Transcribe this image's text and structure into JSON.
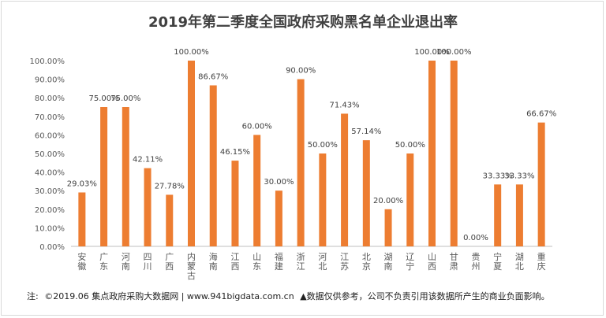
{
  "chart_data": {
    "type": "bar",
    "title": "2019年第二季度全国政府采购黑名单企业退出率",
    "categories": [
      "安徽",
      "广东",
      "河南",
      "四川",
      "广西",
      "内蒙古",
      "海南",
      "江西",
      "山东",
      "福建",
      "浙江",
      "河北",
      "江苏",
      "北京",
      "湖南",
      "辽宁",
      "山西",
      "甘肃",
      "贵州",
      "宁夏",
      "湖北",
      "重庆"
    ],
    "values": [
      29.03,
      75.0,
      75.0,
      42.11,
      27.78,
      100.0,
      86.67,
      46.15,
      60.0,
      30.0,
      90.0,
      50.0,
      71.43,
      57.14,
      20.0,
      50.0,
      100.0,
      100.0,
      0.0,
      33.33,
      33.33,
      66.67
    ],
    "data_labels": [
      "29.03%",
      "75.00%",
      "75.00%",
      "42.11%",
      "27.78%",
      "100.00%",
      "86.67%",
      "46.15%",
      "60.00%",
      "30.00%",
      "90.00%",
      "50.00%",
      "71.43%",
      "57.14%",
      "20.00%",
      "50.00%",
      "100.00%",
      "100.00%",
      "0.00%",
      "33.33%",
      "33.33%",
      "66.67%"
    ],
    "ylim": [
      0,
      100
    ],
    "y_ticks": [
      "0.00%",
      "10.00%",
      "20.00%",
      "30.00%",
      "40.00%",
      "50.00%",
      "60.00%",
      "70.00%",
      "80.00%",
      "90.00%",
      "100.00%"
    ],
    "grid": false,
    "legend": "none",
    "bar_color": "#ed7d31",
    "xlabel": "",
    "ylabel": ""
  },
  "footer": {
    "note_label": "注:",
    "source": "©2019.06 集点政府采购大数据网 | www.941bigdata.com.cn",
    "disclaimer": "▲数据仅供参考，公司不负责引用该数据所产生的商业负面影响。"
  },
  "colors": {
    "title": "#404040",
    "axis_text": "#595959",
    "axis_line": "#bfbfbf"
  }
}
